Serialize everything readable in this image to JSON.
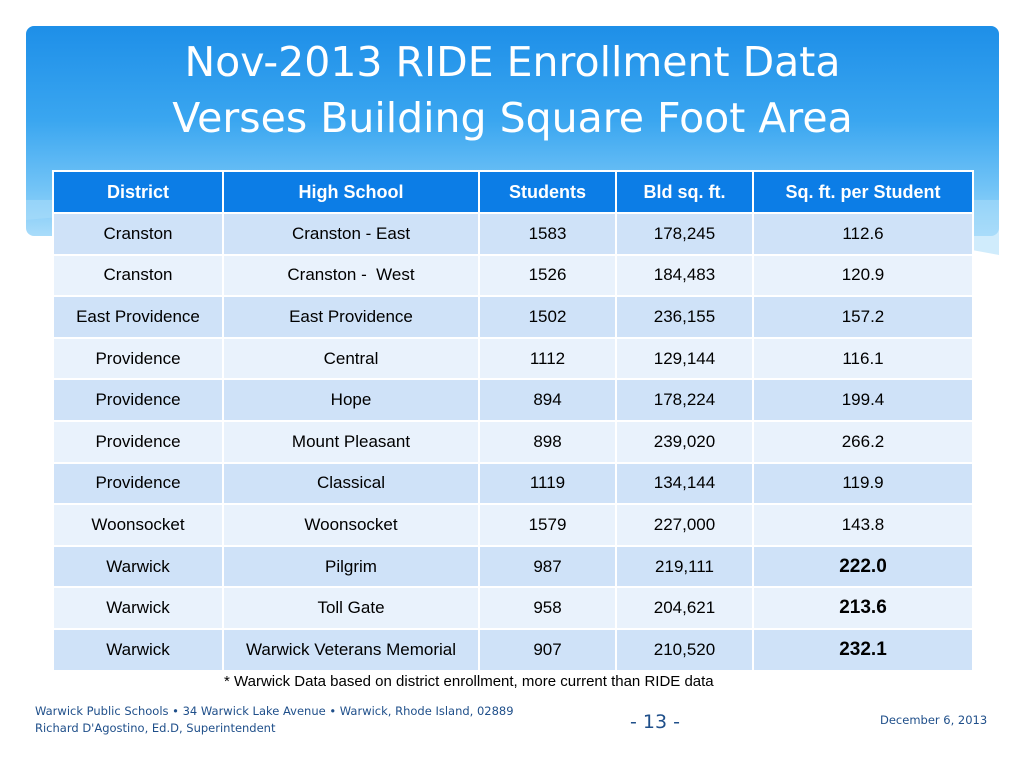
{
  "slide": {
    "title_line1": "Nov-2013 RIDE Enrollment Data",
    "title_line2": "Verses Building Square Foot Area"
  },
  "table": {
    "headers": [
      "District",
      "High School",
      "Students",
      "Bld sq. ft.",
      "Sq. ft. per Student"
    ],
    "rows": [
      [
        "Cranston",
        "Cranston - East",
        "1583",
        "178,245",
        "112.6"
      ],
      [
        "Cranston",
        "Cranston -  West",
        "1526",
        "184,483",
        "120.9"
      ],
      [
        "East Providence",
        "East Providence",
        "1502",
        "236,155",
        "157.2"
      ],
      [
        "Providence",
        "Central",
        "1112",
        "129,144",
        "116.1"
      ],
      [
        "Providence",
        "Hope",
        "894",
        "178,224",
        "199.4"
      ],
      [
        "Providence",
        "Mount Pleasant",
        "898",
        "239,020",
        "266.2"
      ],
      [
        "Providence",
        "Classical",
        "1119",
        "134,144",
        "119.9"
      ],
      [
        "Woonsocket",
        "Woonsocket",
        "1579",
        "227,000",
        "143.8"
      ],
      [
        "Warwick",
        "Pilgrim",
        "987",
        "219,111",
        "222.0"
      ],
      [
        "Warwick",
        "Toll Gate",
        "958",
        "204,621",
        "213.6"
      ],
      [
        "Warwick",
        "Warwick Veterans Memorial",
        "907",
        "210,520",
        "232.1"
      ]
    ]
  },
  "footnote": "* Warwick Data based on district enrollment, more current  than RIDE data",
  "footer": {
    "line1": "Warwick Public Schools • 34 Warwick Lake Avenue • Warwick, Rhode Island, 02889",
    "line2": "Richard D'Agostino, Ed.D, Superintendent",
    "page": "- 13 -",
    "date": "December 6, 2013"
  },
  "colors": {
    "banner_top": "#1e8fe8",
    "header_bg": "#0c7de6",
    "row_odd": "#cfe2f8",
    "row_even": "#e9f2fc",
    "footer_text": "#1f4f8a"
  }
}
